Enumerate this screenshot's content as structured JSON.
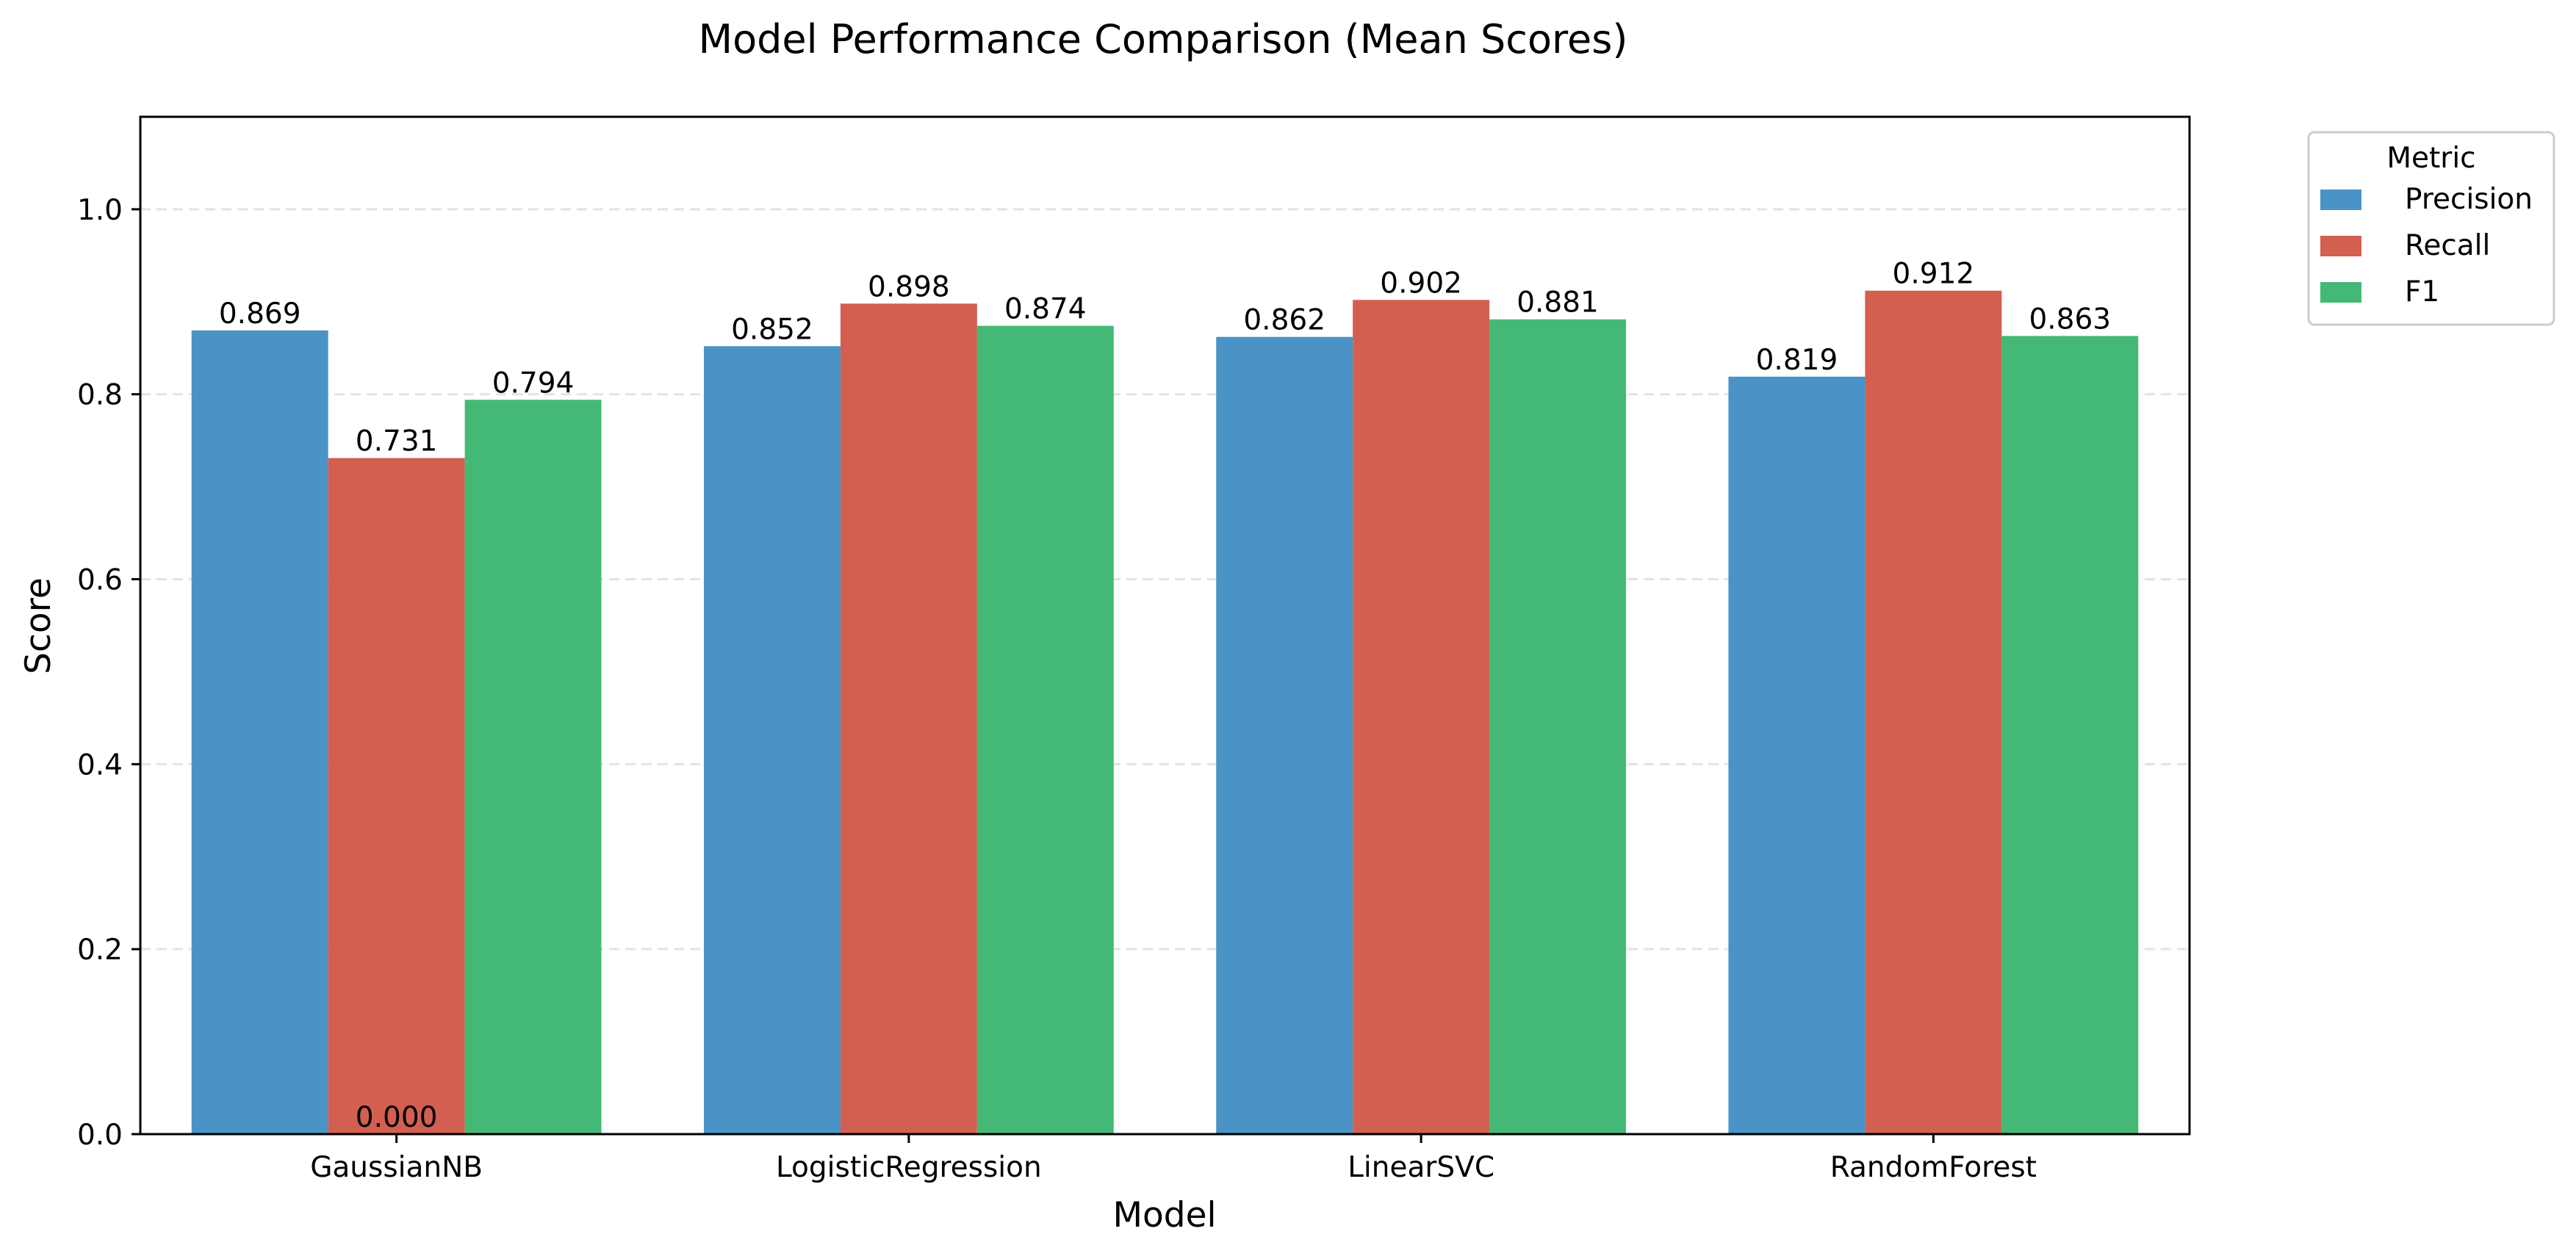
{
  "chart_data": {
    "type": "bar",
    "title": "Model Performance Comparison (Mean Scores)",
    "xlabel": "Model",
    "ylabel": "Score",
    "categories": [
      "GaussianNB",
      "LogisticRegression",
      "LinearSVC",
      "RandomForest"
    ],
    "series": [
      {
        "name": "Precision",
        "color": "#4993C6",
        "values": [
          0.869,
          0.852,
          0.862,
          0.819
        ]
      },
      {
        "name": "Recall",
        "color": "#D25F50",
        "values": [
          0.731,
          0.898,
          0.902,
          0.912
        ]
      },
      {
        "name": "F1",
        "color": "#44B976",
        "values": [
          0.794,
          0.874,
          0.881,
          0.863
        ]
      }
    ],
    "extra_labels": [
      "0.000"
    ],
    "ylim": [
      0,
      1.1
    ],
    "yticks": [
      "0.0",
      "0.2",
      "0.4",
      "0.6",
      "0.8",
      "1.0"
    ],
    "grid": "horizontal dashed",
    "legend": {
      "title": "Metric",
      "placement": "outside top-right"
    }
  }
}
